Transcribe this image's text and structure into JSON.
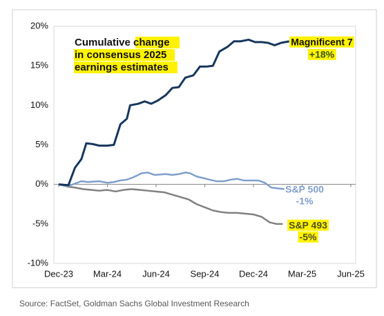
{
  "chart_data": {
    "type": "line",
    "title_lines": [
      "Cumulative change",
      "in consensus 2025",
      "earnings estimates"
    ],
    "source": "Source: FactSet, Goldman Sachs Global Investment Research",
    "xlim": [
      0,
      18
    ],
    "xticks": [
      {
        "value": 0,
        "label": "Dec-23"
      },
      {
        "value": 3,
        "label": "Mar-24"
      },
      {
        "value": 6,
        "label": "Jun-24"
      },
      {
        "value": 9,
        "label": "Sep-24"
      },
      {
        "value": 12,
        "label": "Dec-24"
      },
      {
        "value": 15,
        "label": "Mar-25"
      },
      {
        "value": 18,
        "label": "Jun-25"
      }
    ],
    "ylim": [
      -10,
      20
    ],
    "yticks": [
      {
        "value": -10,
        "label": "-10%"
      },
      {
        "value": -5,
        "label": "-5%"
      },
      {
        "value": 0,
        "label": "0%"
      },
      {
        "value": 5,
        "label": "5%"
      },
      {
        "value": 10,
        "label": "10%"
      },
      {
        "value": 15,
        "label": "15%"
      },
      {
        "value": 20,
        "label": "20%"
      }
    ],
    "series": [
      {
        "name": "Magnificent 7",
        "end_label": "+18%",
        "color": "#16365c",
        "x": [
          0,
          0.6,
          1.0,
          1.4,
          1.7,
          2.1,
          2.5,
          3.0,
          3.4,
          3.8,
          4.2,
          4.4,
          4.9,
          5.3,
          5.7,
          6.1,
          6.6,
          7.0,
          7.4,
          7.8,
          8.3,
          8.7,
          9.1,
          9.5,
          9.9,
          10.4,
          10.8,
          11.2,
          11.7,
          12.1,
          12.5,
          12.9,
          13.3,
          13.7,
          14.2
        ],
        "values": [
          0,
          -0.1,
          2.1,
          3.2,
          5.2,
          5.1,
          4.9,
          4.9,
          5.0,
          7.6,
          8.3,
          10.0,
          10.2,
          10.5,
          10.2,
          10.6,
          11.3,
          12.2,
          12.3,
          13.5,
          13.8,
          14.9,
          14.9,
          15.0,
          16.8,
          17.4,
          18.1,
          18.1,
          18.3,
          18.0,
          18.0,
          17.9,
          17.6,
          17.9,
          18.1
        ]
      },
      {
        "name": "S&P 500",
        "end_label": "-1%",
        "color": "#7f9fcb",
        "x": [
          0,
          0.6,
          1.0,
          1.4,
          1.8,
          2.5,
          3.0,
          3.4,
          3.8,
          4.2,
          4.6,
          5.1,
          5.5,
          5.9,
          6.6,
          7.0,
          7.4,
          7.8,
          8.1,
          8.5,
          8.9,
          9.3,
          9.7,
          10.2,
          10.6,
          11.0,
          11.4,
          11.8,
          12.3,
          12.7,
          13.1,
          13.5,
          13.9
        ],
        "values": [
          0,
          -0.2,
          0.1,
          0.4,
          0.3,
          0.4,
          0.2,
          0.3,
          0.5,
          0.6,
          0.9,
          1.4,
          1.5,
          1.2,
          1.3,
          1.2,
          1.3,
          1.5,
          1.4,
          1.0,
          0.8,
          0.6,
          0.4,
          0.4,
          0.6,
          0.7,
          0.5,
          0.5,
          0.5,
          0.2,
          -0.4,
          -0.5,
          -0.6
        ]
      },
      {
        "name": "S&P 493",
        "end_label": "-5%",
        "color": "#808080",
        "x": [
          0,
          0.6,
          1.0,
          1.5,
          2.0,
          2.5,
          3.0,
          3.5,
          4.0,
          4.5,
          5.0,
          5.5,
          6.0,
          6.5,
          7.0,
          7.5,
          8.0,
          8.5,
          9.0,
          9.5,
          10.0,
          10.5,
          11.0,
          11.5,
          12.0,
          12.5,
          13.0,
          13.4,
          13.8
        ],
        "values": [
          0,
          -0.3,
          -0.4,
          -0.6,
          -0.7,
          -0.8,
          -0.7,
          -0.9,
          -0.7,
          -0.6,
          -0.7,
          -0.8,
          -0.9,
          -1.0,
          -1.3,
          -1.6,
          -1.9,
          -2.5,
          -2.9,
          -3.3,
          -3.5,
          -3.6,
          -3.6,
          -3.7,
          -3.8,
          -4.1,
          -4.8,
          -5.0,
          -5.0
        ]
      }
    ]
  }
}
